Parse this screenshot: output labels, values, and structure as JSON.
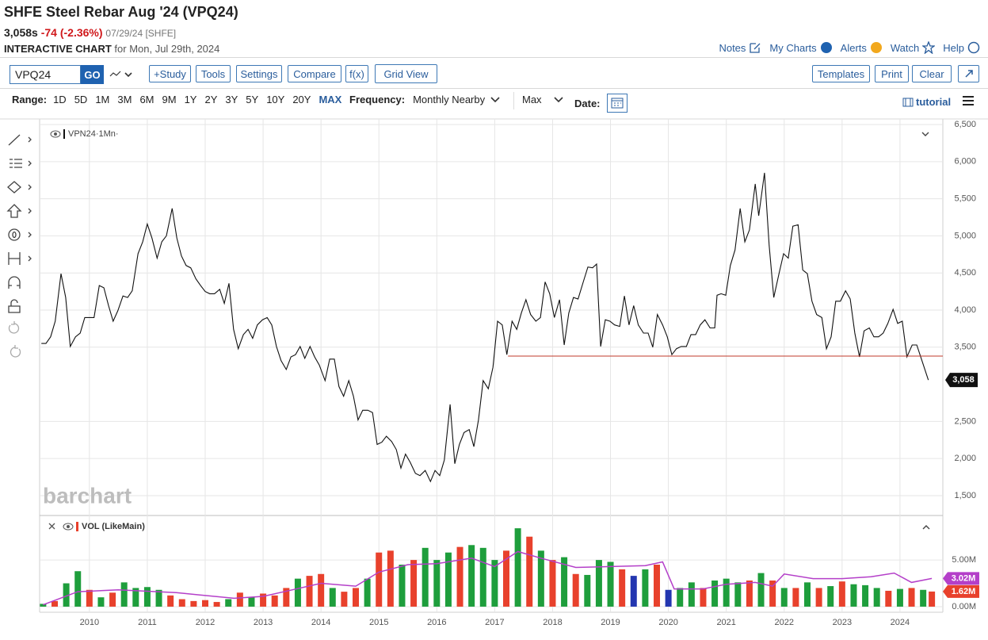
{
  "header": {
    "title": "SHFE Steel Rebar Aug '24 (VPQ24)",
    "price": "3,058s",
    "change": "-74 (-2.36%)",
    "date": "07/29/24 [SHFE]",
    "chart_label": "INTERACTIVE CHART",
    "chart_for": "for Mon, Jul 29th, 2024",
    "links": [
      "Notes",
      "My Charts",
      "Alerts",
      "Watch",
      "Help"
    ]
  },
  "toolbar": {
    "symbol": "VPQ24",
    "go": "GO",
    "buttons": [
      "+Study",
      "Tools",
      "Settings",
      "Compare",
      "f(x)",
      "Grid View"
    ],
    "right_buttons": [
      "Templates",
      "Print",
      "Clear"
    ]
  },
  "range_bar": {
    "range_label": "Range:",
    "ranges": [
      "1D",
      "5D",
      "1M",
      "3M",
      "6M",
      "9M",
      "1Y",
      "2Y",
      "3Y",
      "5Y",
      "10Y",
      "20Y",
      "MAX"
    ],
    "frequency_label": "Frequency:",
    "frequency": "Monthly Nearby",
    "aggregation": "Max",
    "date_label": "Date:",
    "tutorial": "tutorial"
  },
  "chart_data": [
    {
      "type": "line",
      "legend_label": "VPN24·1Mn·",
      "watermark": "barchart",
      "color": "#111111",
      "x": [
        2009.17,
        2009.25,
        2009.33,
        2009.41,
        2009.51,
        2009.59,
        2009.67,
        2009.76,
        2009.84,
        2009.92,
        2010.0,
        2010.08,
        2010.17,
        2010.25,
        2010.33,
        2010.41,
        2010.49,
        2010.58,
        2010.66,
        2010.74,
        2010.84,
        2010.92,
        2011.0,
        2011.08,
        2011.17,
        2011.25,
        2011.33,
        2011.43,
        2011.51,
        2011.59,
        2011.67,
        2011.75,
        2011.84,
        2011.92,
        2012.0,
        2012.08,
        2012.16,
        2012.25,
        2012.33,
        2012.41,
        2012.49,
        2012.57,
        2012.66,
        2012.74,
        2012.82,
        2012.9,
        2012.99,
        2013.07,
        2013.15,
        2013.23,
        2013.31,
        2013.4,
        2013.48,
        2013.56,
        2013.64,
        2013.72,
        2013.81,
        2013.89,
        2013.97,
        2014.07,
        2014.15,
        2014.23,
        2014.31,
        2014.39,
        2014.48,
        2014.56,
        2014.64,
        2014.72,
        2014.81,
        2014.89,
        2014.97,
        2015.05,
        2015.13,
        2015.22,
        2015.3,
        2015.38,
        2015.46,
        2015.54,
        2015.63,
        2015.71,
        2015.8,
        2015.89,
        2015.97,
        2016.05,
        2016.13,
        2016.23,
        2016.31,
        2016.39,
        2016.47,
        2016.56,
        2016.64,
        2016.72,
        2016.8,
        2016.89,
        2016.97,
        2017.05,
        2017.13,
        2017.21,
        2017.3,
        2017.38,
        2017.46,
        2017.54,
        2017.62,
        2017.71,
        2017.79,
        2017.87,
        2017.95,
        2018.03,
        2018.12,
        2018.2,
        2018.28,
        2018.36,
        2018.44,
        2018.53,
        2018.61,
        2018.69,
        2018.76,
        2018.83,
        2018.91,
        2018.99,
        2019.07,
        2019.16,
        2019.24,
        2019.32,
        2019.4,
        2019.48,
        2019.57,
        2019.65,
        2019.73,
        2019.81,
        2019.9,
        2019.98,
        2020.06,
        2020.14,
        2020.22,
        2020.31,
        2020.39,
        2020.47,
        2020.55,
        2020.63,
        2020.72,
        2020.8,
        2020.84,
        2020.91,
        2020.99,
        2021.07,
        2021.15,
        2021.24,
        2021.32,
        2021.4,
        2021.5,
        2021.56,
        2021.66,
        2021.74,
        2021.82,
        2021.91,
        2021.99,
        2022.07,
        2022.15,
        2022.24,
        2022.32,
        2022.4,
        2022.48,
        2022.56,
        2022.65,
        2022.73,
        2022.81,
        2022.89,
        2022.97,
        2023.06,
        2023.14,
        2023.22,
        2023.3,
        2023.38,
        2023.47,
        2023.55,
        2023.63,
        2023.71,
        2023.79,
        2023.88,
        2023.96,
        2024.04,
        2024.12,
        2024.21,
        2024.29,
        2024.37,
        2024.49
      ],
      "values": [
        3550,
        3550,
        3640,
        3850,
        4490,
        4170,
        3510,
        3640,
        3690,
        3900,
        3900,
        3900,
        4330,
        4300,
        4060,
        3850,
        3990,
        4190,
        4170,
        4260,
        4760,
        4920,
        5160,
        4970,
        4700,
        4920,
        5000,
        5370,
        4970,
        4730,
        4600,
        4570,
        4420,
        4330,
        4250,
        4220,
        4220,
        4280,
        4090,
        4360,
        3740,
        3480,
        3670,
        3740,
        3620,
        3800,
        3870,
        3900,
        3800,
        3510,
        3320,
        3200,
        3370,
        3400,
        3510,
        3350,
        3510,
        3370,
        3260,
        3050,
        3340,
        3340,
        2970,
        2840,
        3050,
        2840,
        2520,
        2650,
        2650,
        2620,
        2190,
        2220,
        2300,
        2230,
        2120,
        1870,
        2060,
        1950,
        1800,
        1770,
        1840,
        1690,
        1840,
        1770,
        1980,
        2730,
        1930,
        2190,
        2350,
        2390,
        2160,
        2520,
        3050,
        2940,
        3230,
        3850,
        3800,
        3400,
        3850,
        3740,
        3960,
        4140,
        3940,
        3850,
        3900,
        4380,
        4220,
        3900,
        4140,
        3530,
        3960,
        4170,
        4150,
        4380,
        4580,
        4570,
        4620,
        3510,
        3870,
        3850,
        3800,
        3780,
        4190,
        3800,
        4060,
        3800,
        3690,
        3690,
        3500,
        3940,
        3800,
        3640,
        3400,
        3480,
        3510,
        3510,
        3670,
        3670,
        3800,
        3870,
        3760,
        3760,
        4200,
        4220,
        4200,
        4600,
        4810,
        5370,
        4920,
        5080,
        5700,
        5270,
        5850,
        4870,
        4170,
        4490,
        4760,
        4700,
        5130,
        5150,
        4540,
        4490,
        4120,
        3940,
        3900,
        3480,
        3640,
        4120,
        4120,
        4260,
        4150,
        3690,
        3370,
        3720,
        3760,
        3640,
        3640,
        3690,
        3820,
        4010,
        3820,
        3850,
        3370,
        3530,
        3530,
        3340,
        3058
      ],
      "last_label": "3,058",
      "reference_line": {
        "value": 3380,
        "x_start": 2017.23,
        "color": "#c0392b"
      },
      "xlim": [
        2009.14,
        2024.74
      ],
      "ylim": [
        1254,
        6575
      ],
      "yticks": [
        {
          "value": 6500,
          "label": "6,500"
        },
        {
          "value": 6000,
          "label": "6,000"
        },
        {
          "value": 5500,
          "label": "5,500"
        },
        {
          "value": 5000,
          "label": "5,000"
        },
        {
          "value": 4500,
          "label": "4,500"
        },
        {
          "value": 4000,
          "label": "4,000"
        },
        {
          "value": 3500,
          "label": "3,500"
        },
        {
          "value": 2500,
          "label": "2,500"
        },
        {
          "value": 2000,
          "label": "2,000"
        },
        {
          "value": 1500,
          "label": "1,500"
        }
      ],
      "grid": true
    },
    {
      "type": "bar",
      "title": "VOL (LikeMain)",
      "x": [
        2009.2,
        2009.4,
        2009.6,
        2009.8,
        2010.0,
        2010.2,
        2010.4,
        2010.6,
        2010.8,
        2011.0,
        2011.2,
        2011.4,
        2011.6,
        2011.8,
        2012.0,
        2012.2,
        2012.4,
        2012.6,
        2012.8,
        2013.0,
        2013.2,
        2013.4,
        2013.6,
        2013.8,
        2014.0,
        2014.2,
        2014.4,
        2014.6,
        2014.8,
        2015.0,
        2015.2,
        2015.4,
        2015.6,
        2015.8,
        2016.0,
        2016.2,
        2016.4,
        2016.6,
        2016.8,
        2017.0,
        2017.2,
        2017.4,
        2017.6,
        2017.8,
        2018.0,
        2018.2,
        2018.4,
        2018.6,
        2018.8,
        2019.0,
        2019.2,
        2019.4,
        2019.6,
        2019.8,
        2020.0,
        2020.2,
        2020.4,
        2020.6,
        2020.8,
        2021.0,
        2021.2,
        2021.4,
        2021.6,
        2021.8,
        2022.0,
        2022.2,
        2022.4,
        2022.6,
        2022.8,
        2023.0,
        2023.2,
        2023.4,
        2023.6,
        2023.8,
        2024.0,
        2024.2,
        2024.4,
        2024.55
      ],
      "values": [
        0.3,
        0.6,
        2.5,
        3.8,
        1.8,
        1.0,
        1.5,
        2.6,
        2.0,
        2.1,
        1.8,
        1.2,
        0.8,
        0.6,
        0.7,
        0.5,
        0.8,
        1.5,
        1.0,
        1.4,
        1.2,
        2.0,
        3.0,
        3.3,
        3.5,
        2.0,
        1.6,
        2.0,
        3.0,
        5.8,
        6.0,
        4.5,
        5.0,
        6.3,
        5.0,
        5.8,
        6.4,
        6.6,
        6.3,
        5.0,
        6.0,
        8.4,
        7.5,
        6.0,
        5.0,
        5.3,
        3.5,
        3.4,
        5.0,
        4.8,
        4.0,
        3.3,
        4.0,
        4.5,
        1.8,
        2.0,
        2.6,
        2.0,
        2.8,
        3.0,
        2.6,
        2.8,
        3.6,
        2.8,
        2.0,
        2.0,
        2.6,
        2.0,
        2.2,
        2.7,
        2.4,
        2.3,
        2.0,
        1.7,
        1.9,
        2.0,
        1.8,
        1.62
      ],
      "colors": [
        "#1e9e3c",
        "#e8412c",
        "#1e9e3c",
        "#1e9e3c",
        "#e8412c",
        "#1e9e3c",
        "#e8412c",
        "#1e9e3c",
        "#1e9e3c",
        "#1e9e3c",
        "#1e9e3c",
        "#e8412c",
        "#e8412c",
        "#e8412c",
        "#e8412c",
        "#e8412c",
        "#1e9e3c",
        "#e8412c",
        "#1e9e3c",
        "#e8412c",
        "#e8412c",
        "#e8412c",
        "#1e9e3c",
        "#e8412c",
        "#e8412c",
        "#1e9e3c",
        "#e8412c",
        "#e8412c",
        "#1e9e3c",
        "#e8412c",
        "#e8412c",
        "#1e9e3c",
        "#e8412c",
        "#1e9e3c",
        "#1e9e3c",
        "#1e9e3c",
        "#e8412c",
        "#1e9e3c",
        "#1e9e3c",
        "#1e9e3c",
        "#e8412c",
        "#1e9e3c",
        "#e8412c",
        "#1e9e3c",
        "#e8412c",
        "#1e9e3c",
        "#e8412c",
        "#1e9e3c",
        "#1e9e3c",
        "#1e9e3c",
        "#e8412c",
        "#2336b0",
        "#1e9e3c",
        "#e8412c",
        "#2336b0",
        "#1e9e3c",
        "#1e9e3c",
        "#e8412c",
        "#1e9e3c",
        "#1e9e3c",
        "#1e9e3c",
        "#e8412c",
        "#1e9e3c",
        "#e8412c",
        "#1e9e3c",
        "#e8412c",
        "#1e9e3c",
        "#e8412c",
        "#1e9e3c",
        "#e8412c",
        "#1e9e3c",
        "#1e9e3c",
        "#1e9e3c",
        "#e8412c",
        "#1e9e3c",
        "#e8412c",
        "#1e9e3c",
        "#e8412c"
      ],
      "last_label": "1.62M",
      "average": {
        "color": "#b43fc9",
        "label": "3.02M",
        "x": [
          2009.2,
          2009.8,
          2010.5,
          2011.5,
          2012.5,
          2013.0,
          2013.5,
          2014.0,
          2014.6,
          2015.0,
          2015.5,
          2016.0,
          2016.6,
          2017.0,
          2017.4,
          2017.8,
          2018.4,
          2019.0,
          2019.6,
          2019.9,
          2020.1,
          2020.6,
          2021.0,
          2021.5,
          2021.8,
          2022.0,
          2022.5,
          2023.0,
          2023.5,
          2023.9,
          2024.2,
          2024.55
        ],
        "values": [
          0.2,
          1.6,
          1.8,
          1.5,
          0.9,
          1.1,
          1.8,
          2.5,
          2.2,
          3.7,
          4.5,
          4.6,
          5.2,
          4.3,
          5.9,
          5.2,
          4.2,
          4.3,
          4.4,
          4.8,
          1.9,
          1.9,
          2.4,
          2.6,
          2.2,
          3.5,
          3.0,
          3.0,
          3.2,
          3.6,
          2.6,
          3.02
        ]
      },
      "xlim": [
        2009.14,
        2024.74
      ],
      "ylim": [
        -0.6,
        9.6
      ],
      "xticks": [
        2010,
        2011,
        2012,
        2013,
        2014,
        2015,
        2016,
        2017,
        2018,
        2019,
        2020,
        2021,
        2022,
        2023,
        2024
      ],
      "yticks": [
        {
          "value": 5,
          "label": "5.00M"
        },
        {
          "value": 0,
          "label": "0.00M"
        }
      ],
      "grid": true
    }
  ]
}
